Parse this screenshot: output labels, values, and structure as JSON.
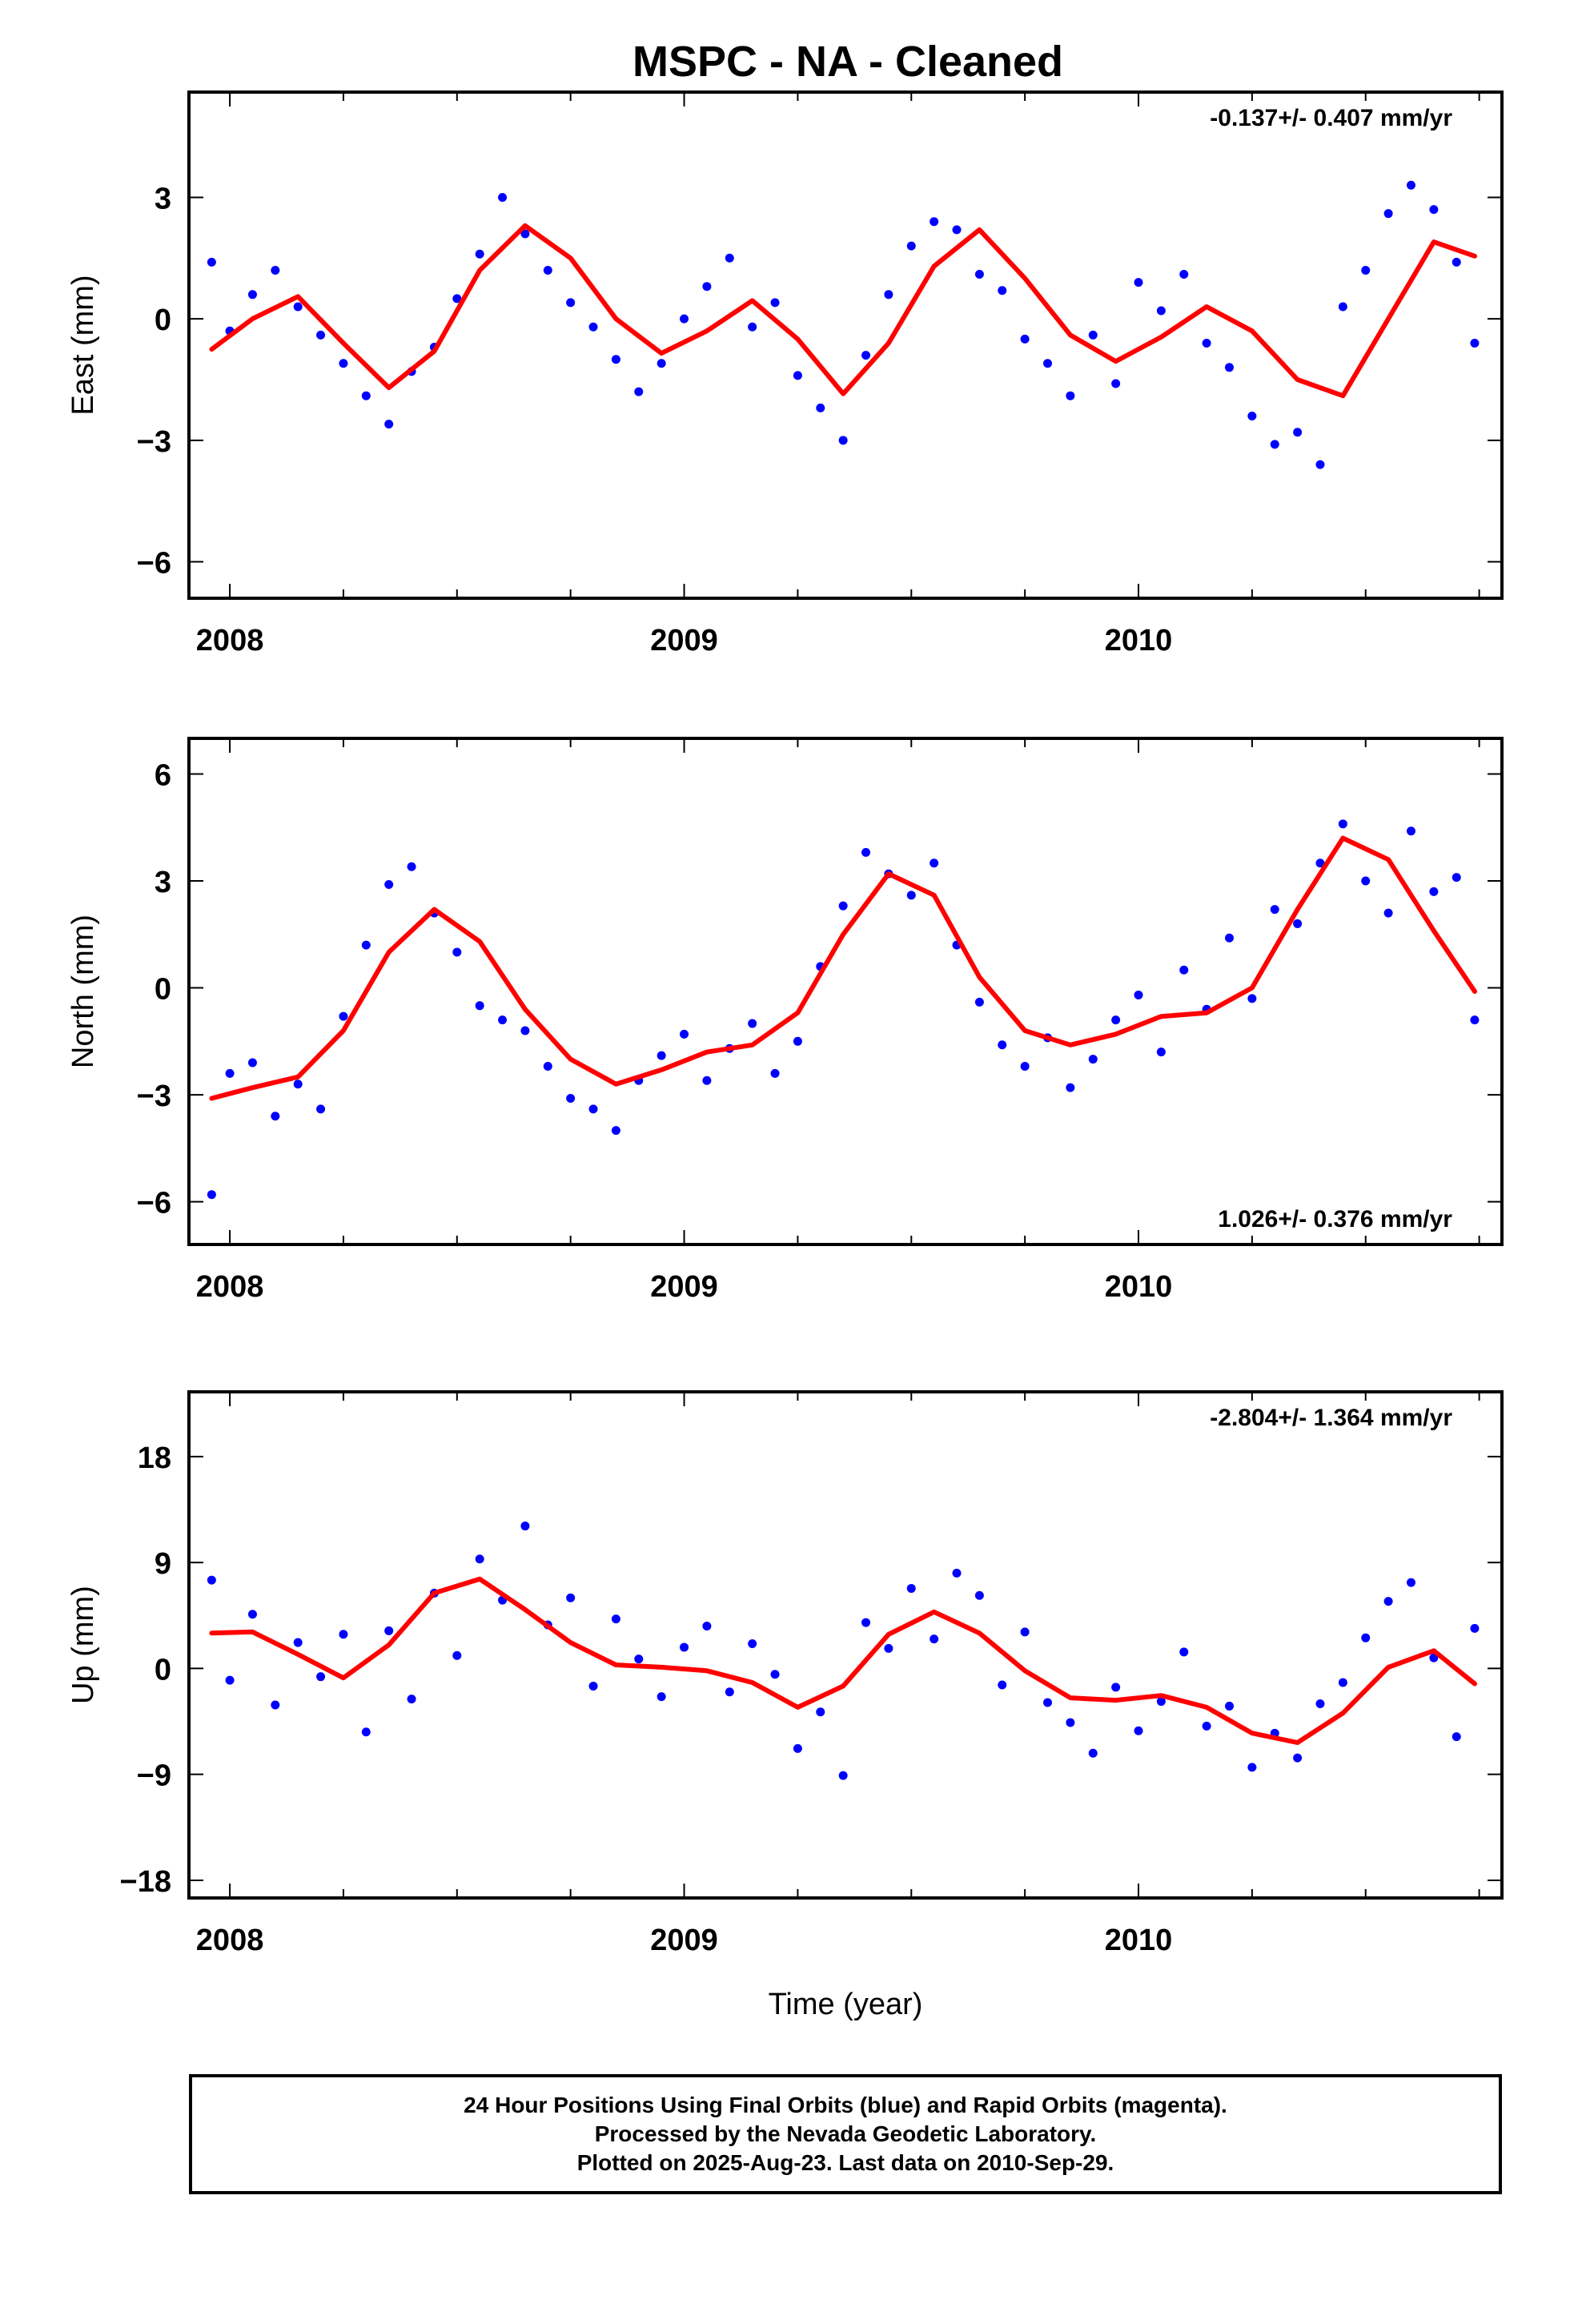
{
  "title": "MSPC  - NA - Cleaned",
  "colors": {
    "points": "#0000ff",
    "fit": "#ff0000",
    "axes": "#000000",
    "background": "#ffffff"
  },
  "chart_data": [
    {
      "type": "scatter",
      "ylabel": "East (mm)",
      "ylim": [
        -6.9,
        5.6
      ],
      "yticks": [
        -6,
        -3,
        0,
        3
      ],
      "ytick_labels": [
        "−6",
        "−3",
        "0",
        "3"
      ],
      "xlim": [
        2007.91,
        2010.8
      ],
      "xticks": [
        2008,
        2009,
        2010
      ],
      "xtick_labels": [
        "2008",
        "2009",
        "2010"
      ],
      "rate_label": "-0.137+/- 0.407 mm/yr",
      "rate_position": "top-right",
      "series": [
        {
          "kind": "points",
          "x": [
            2007.96,
            2008.0,
            2008.05,
            2008.1,
            2008.15,
            2008.2,
            2008.25,
            2008.3,
            2008.35,
            2008.4,
            2008.45,
            2008.5,
            2008.55,
            2008.6,
            2008.65,
            2008.7,
            2008.75,
            2008.8,
            2008.85,
            2008.9,
            2008.95,
            2009.0,
            2009.05,
            2009.1,
            2009.15,
            2009.2,
            2009.25,
            2009.3,
            2009.35,
            2009.4,
            2009.45,
            2009.5,
            2009.55,
            2009.6,
            2009.65,
            2009.7,
            2009.75,
            2009.8,
            2009.85,
            2009.9,
            2009.95,
            2010.0,
            2010.05,
            2010.1,
            2010.15,
            2010.2,
            2010.25,
            2010.3,
            2010.35,
            2010.4,
            2010.45,
            2010.5,
            2010.55,
            2010.6,
            2010.65,
            2010.7,
            2010.74
          ],
          "y": [
            1.4,
            -0.3,
            0.6,
            1.2,
            0.3,
            -0.4,
            -1.1,
            -1.9,
            -2.6,
            -1.3,
            -0.7,
            0.5,
            1.6,
            3.0,
            2.1,
            1.2,
            0.4,
            -0.2,
            -1.0,
            -1.8,
            -1.1,
            0.0,
            0.8,
            1.5,
            -0.2,
            0.4,
            -1.4,
            -2.2,
            -3.0,
            -0.9,
            0.6,
            1.8,
            2.4,
            2.2,
            1.1,
            0.7,
            -0.5,
            -1.1,
            -1.9,
            -0.4,
            -1.6,
            0.9,
            0.2,
            1.1,
            -0.6,
            -1.2,
            -2.4,
            -3.1,
            -2.8,
            -3.6,
            0.3,
            1.2,
            2.6,
            3.3,
            2.7,
            1.4,
            -0.6
          ]
        },
        {
          "kind": "fit",
          "x": [
            2007.96,
            2008.05,
            2008.15,
            2008.25,
            2008.35,
            2008.45,
            2008.55,
            2008.65,
            2008.75,
            2008.85,
            2008.95,
            2009.05,
            2009.15,
            2009.25,
            2009.35,
            2009.45,
            2009.55,
            2009.65,
            2009.75,
            2009.85,
            2009.95,
            2010.05,
            2010.15,
            2010.25,
            2010.35,
            2010.45,
            2010.55,
            2010.65,
            2010.74
          ],
          "y": [
            -0.75,
            0.0,
            0.55,
            -0.6,
            -1.7,
            -0.8,
            1.2,
            2.3,
            1.5,
            0.0,
            -0.85,
            -0.3,
            0.45,
            -0.5,
            -1.85,
            -0.6,
            1.3,
            2.2,
            1.0,
            -0.4,
            -1.05,
            -0.45,
            0.3,
            -0.3,
            -1.5,
            -1.9,
            0.0,
            1.9,
            1.55
          ]
        }
      ]
    },
    {
      "type": "scatter",
      "ylabel": "North (mm)",
      "ylim": [
        -7.2,
        7.0
      ],
      "yticks": [
        -6,
        -3,
        0,
        3,
        6
      ],
      "ytick_labels": [
        "−6",
        "−3",
        "0",
        "3",
        "6"
      ],
      "xlim": [
        2007.91,
        2010.8
      ],
      "xticks": [
        2008,
        2009,
        2010
      ],
      "xtick_labels": [
        "2008",
        "2009",
        "2010"
      ],
      "rate_label": "1.026+/- 0.376 mm/yr",
      "rate_position": "bottom-right",
      "series": [
        {
          "kind": "points",
          "x": [
            2007.96,
            2008.0,
            2008.05,
            2008.1,
            2008.15,
            2008.2,
            2008.25,
            2008.3,
            2008.35,
            2008.4,
            2008.45,
            2008.5,
            2008.55,
            2008.6,
            2008.65,
            2008.7,
            2008.75,
            2008.8,
            2008.85,
            2008.9,
            2008.95,
            2009.0,
            2009.05,
            2009.1,
            2009.15,
            2009.2,
            2009.25,
            2009.3,
            2009.35,
            2009.4,
            2009.45,
            2009.5,
            2009.55,
            2009.6,
            2009.65,
            2009.7,
            2009.75,
            2009.8,
            2009.85,
            2009.9,
            2009.95,
            2010.0,
            2010.05,
            2010.1,
            2010.15,
            2010.2,
            2010.25,
            2010.3,
            2010.35,
            2010.4,
            2010.45,
            2010.5,
            2010.55,
            2010.6,
            2010.65,
            2010.7,
            2010.74
          ],
          "y": [
            -5.8,
            -2.4,
            -2.1,
            -3.6,
            -2.7,
            -3.4,
            -0.8,
            1.2,
            2.9,
            3.4,
            2.1,
            1.0,
            -0.5,
            -0.9,
            -1.2,
            -2.2,
            -3.1,
            -3.4,
            -4.0,
            -2.6,
            -1.9,
            -1.3,
            -2.6,
            -1.7,
            -1.0,
            -2.4,
            -1.5,
            0.6,
            2.3,
            3.8,
            3.2,
            2.6,
            3.5,
            1.2,
            -0.4,
            -1.6,
            -2.2,
            -1.4,
            -2.8,
            -2.0,
            -0.9,
            -0.2,
            -1.8,
            0.5,
            -0.6,
            1.4,
            -0.3,
            2.2,
            1.8,
            3.5,
            4.6,
            3.0,
            2.1,
            4.4,
            2.7,
            3.1,
            -0.9
          ]
        },
        {
          "kind": "fit",
          "x": [
            2007.96,
            2008.05,
            2008.15,
            2008.25,
            2008.35,
            2008.45,
            2008.55,
            2008.65,
            2008.75,
            2008.85,
            2008.95,
            2009.05,
            2009.15,
            2009.25,
            2009.35,
            2009.45,
            2009.55,
            2009.65,
            2009.75,
            2009.85,
            2009.95,
            2010.05,
            2010.15,
            2010.25,
            2010.35,
            2010.45,
            2010.55,
            2010.65,
            2010.74
          ],
          "y": [
            -3.1,
            -2.8,
            -2.5,
            -1.2,
            1.0,
            2.2,
            1.3,
            -0.6,
            -2.0,
            -2.7,
            -2.3,
            -1.8,
            -1.6,
            -0.7,
            1.5,
            3.2,
            2.6,
            0.3,
            -1.2,
            -1.6,
            -1.3,
            -0.8,
            -0.7,
            0.0,
            2.2,
            4.2,
            3.6,
            1.6,
            -0.1
          ]
        }
      ]
    },
    {
      "type": "scatter",
      "ylabel": "Up (mm)",
      "xlabel": "Time (year)",
      "ylim": [
        -19.5,
        23.5
      ],
      "yticks": [
        -18,
        -9,
        0,
        9,
        18
      ],
      "ytick_labels": [
        "−18",
        "−9",
        "0",
        "9",
        "18"
      ],
      "xlim": [
        2007.91,
        2010.8
      ],
      "xticks": [
        2008,
        2009,
        2010
      ],
      "xtick_labels": [
        "2008",
        "2009",
        "2010"
      ],
      "rate_label": "-2.804+/- 1.364 mm/yr",
      "rate_position": "top-right",
      "series": [
        {
          "kind": "points",
          "x": [
            2007.96,
            2008.0,
            2008.05,
            2008.1,
            2008.15,
            2008.2,
            2008.25,
            2008.3,
            2008.35,
            2008.4,
            2008.45,
            2008.5,
            2008.55,
            2008.6,
            2008.65,
            2008.7,
            2008.75,
            2008.8,
            2008.85,
            2008.9,
            2008.95,
            2009.0,
            2009.05,
            2009.1,
            2009.15,
            2009.2,
            2009.25,
            2009.3,
            2009.35,
            2009.4,
            2009.45,
            2009.5,
            2009.55,
            2009.6,
            2009.65,
            2009.7,
            2009.75,
            2009.8,
            2009.85,
            2009.9,
            2009.95,
            2010.0,
            2010.05,
            2010.1,
            2010.15,
            2010.2,
            2010.25,
            2010.3,
            2010.35,
            2010.4,
            2010.45,
            2010.5,
            2010.55,
            2010.6,
            2010.65,
            2010.7,
            2010.74
          ],
          "y": [
            7.5,
            -1.0,
            4.6,
            -3.1,
            2.2,
            -0.7,
            2.9,
            -5.4,
            3.2,
            -2.6,
            6.4,
            1.1,
            9.3,
            5.8,
            12.1,
            3.7,
            6.0,
            -1.5,
            4.2,
            0.8,
            -2.4,
            1.8,
            3.6,
            -2.0,
            2.1,
            -0.5,
            -6.8,
            -3.7,
            -9.1,
            3.9,
            1.7,
            6.8,
            2.5,
            8.1,
            6.2,
            -1.4,
            3.1,
            -2.9,
            -4.6,
            -7.2,
            -1.6,
            -5.3,
            -2.8,
            1.4,
            -4.9,
            -3.2,
            -8.4,
            -5.5,
            -7.6,
            -3.0,
            -1.2,
            2.6,
            5.7,
            7.3,
            0.9,
            -5.8,
            3.4
          ]
        },
        {
          "kind": "fit",
          "x": [
            2007.96,
            2008.05,
            2008.15,
            2008.25,
            2008.35,
            2008.45,
            2008.55,
            2008.65,
            2008.75,
            2008.85,
            2008.95,
            2009.05,
            2009.15,
            2009.25,
            2009.35,
            2009.45,
            2009.55,
            2009.65,
            2009.75,
            2009.85,
            2009.95,
            2010.05,
            2010.15,
            2010.25,
            2010.35,
            2010.45,
            2010.55,
            2010.65,
            2010.74
          ],
          "y": [
            3.0,
            3.1,
            1.2,
            -0.8,
            2.0,
            6.4,
            7.6,
            5.0,
            2.2,
            0.3,
            0.1,
            -0.2,
            -1.2,
            -3.3,
            -1.5,
            2.9,
            4.8,
            3.0,
            -0.2,
            -2.5,
            -2.7,
            -2.3,
            -3.3,
            -5.5,
            -6.3,
            -3.8,
            0.1,
            1.5,
            -1.3
          ]
        }
      ]
    }
  ],
  "footer": {
    "lines": [
      "24 Hour Positions Using Final Orbits (blue) and Rapid Orbits (magenta).",
      "Processed by the Nevada Geodetic Laboratory.",
      "Plotted on 2025-Aug-23. Last data on 2010-Sep-29."
    ]
  }
}
